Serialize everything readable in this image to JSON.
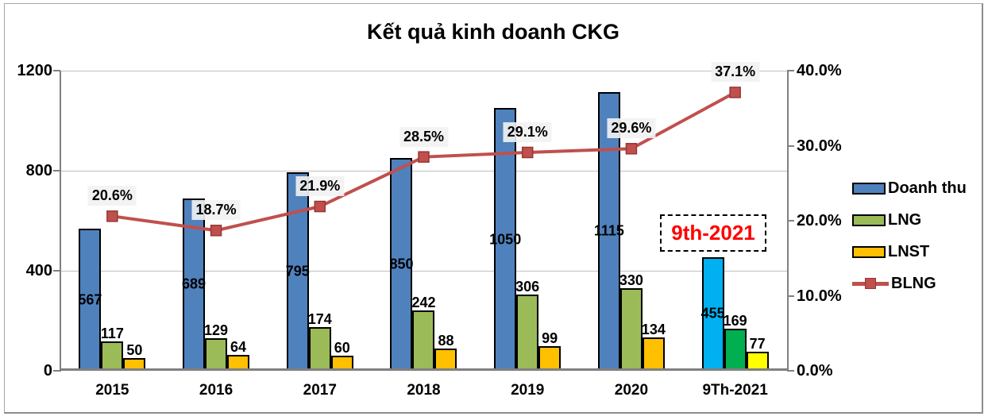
{
  "title": "Kết quả kinh doanh CKG",
  "annotation": {
    "text": "9th-2021",
    "color": "#FF0000"
  },
  "legend": {
    "position": "right",
    "items": [
      {
        "label": "Doanh thu",
        "swatch": "bar",
        "color": "#4F81BD"
      },
      {
        "label": "LNG",
        "swatch": "bar",
        "color": "#9BBB59"
      },
      {
        "label": "LNST",
        "swatch": "bar",
        "color": "#FFC000"
      },
      {
        "label": "BLNG",
        "swatch": "line",
        "color": "#C0504D"
      }
    ]
  },
  "chart_data": {
    "type": "bar",
    "subtype": "grouped-bars-with-line-overlay",
    "title": "Kết quả kinh doanh CKG",
    "categories": [
      "2015",
      "2016",
      "2017",
      "2018",
      "2019",
      "2020",
      "9Th-2021"
    ],
    "series": [
      {
        "name": "Doanh thu",
        "type": "bar",
        "axis": "left",
        "values": [
          567,
          689,
          795,
          850,
          1050,
          1115,
          455
        ],
        "color": "#4F81BD",
        "last_period_color": "#00B0F0"
      },
      {
        "name": "LNG",
        "type": "bar",
        "axis": "left",
        "values": [
          117,
          129,
          174,
          242,
          306,
          330,
          169
        ],
        "color": "#9BBB59",
        "last_period_color": "#00B050"
      },
      {
        "name": "LNST",
        "type": "bar",
        "axis": "left",
        "values": [
          50,
          64,
          60,
          88,
          99,
          134,
          77
        ],
        "color": "#FFC000",
        "last_period_color": "#FFFF00"
      },
      {
        "name": "BLNG",
        "type": "line",
        "axis": "right",
        "values": [
          20.6,
          18.7,
          21.9,
          28.5,
          29.1,
          29.6,
          37.1
        ],
        "labels": [
          "20.6%",
          "18.7%",
          "21.9%",
          "28.5%",
          "29.1%",
          "29.6%",
          "37.1%"
        ],
        "color": "#C0504D",
        "marker": "square",
        "marker_border": "#953735"
      }
    ],
    "axes": {
      "left": {
        "min": 0,
        "max": 1200,
        "tick_values": [
          0,
          400,
          800,
          1200
        ],
        "tick_labels": [
          "0",
          "400",
          "800",
          "1200"
        ]
      },
      "right": {
        "min": 0,
        "max": 40,
        "tick_values": [
          0,
          10,
          20,
          30,
          40
        ],
        "tick_labels": [
          "0.0%",
          "10.0%",
          "20.0%",
          "30.0%",
          "40.0%"
        ]
      }
    },
    "grid": {
      "horizontal_at_left_ticks": true
    },
    "legend_position": "right",
    "palette": {
      "grid": "#BFBFBF",
      "axis": "#808080",
      "data_label_bg": "#F2F2F2",
      "data_label_text": "#000000"
    }
  }
}
